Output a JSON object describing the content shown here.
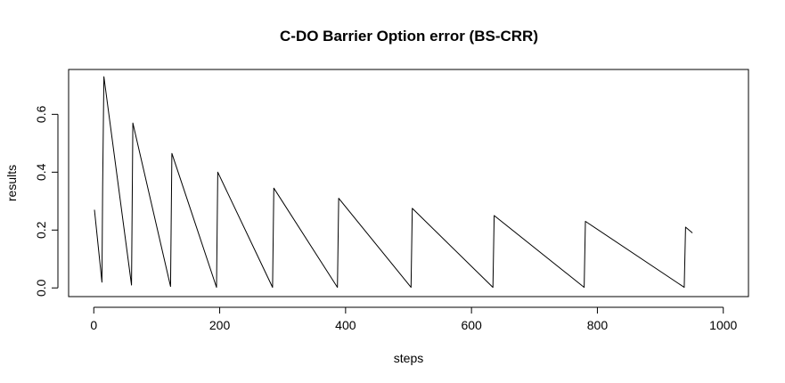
{
  "chart_data": {
    "type": "line",
    "title": "C-DO Barrier Option error (BS-CRR)",
    "xlabel": "steps",
    "ylabel": "results",
    "xlim": [
      -40,
      1040
    ],
    "ylim": [
      -0.03,
      0.755
    ],
    "x_ticks": [
      0,
      200,
      400,
      600,
      800,
      1000
    ],
    "x_tick_labels": [
      "0",
      "200",
      "400",
      "600",
      "800",
      "1000"
    ],
    "y_ticks": [
      0.0,
      0.2,
      0.4,
      0.6
    ],
    "y_tick_labels": [
      "0.0",
      "0.2",
      "0.4",
      "0.6"
    ],
    "grid": false,
    "line_color": "#000000",
    "series": [
      {
        "x": [
          1,
          13,
          14,
          16,
          60,
          62,
          122,
          124,
          195,
          197,
          284,
          286,
          387,
          389,
          504,
          506,
          634,
          636,
          779,
          781,
          938,
          940,
          951
        ],
        "y": [
          0.27,
          0.02,
          0.35,
          0.73,
          0.01,
          0.57,
          0.005,
          0.465,
          0.002,
          0.4,
          0.002,
          0.345,
          0.002,
          0.31,
          0.002,
          0.275,
          0.002,
          0.25,
          0.002,
          0.23,
          0.002,
          0.21,
          0.19
        ]
      }
    ]
  }
}
